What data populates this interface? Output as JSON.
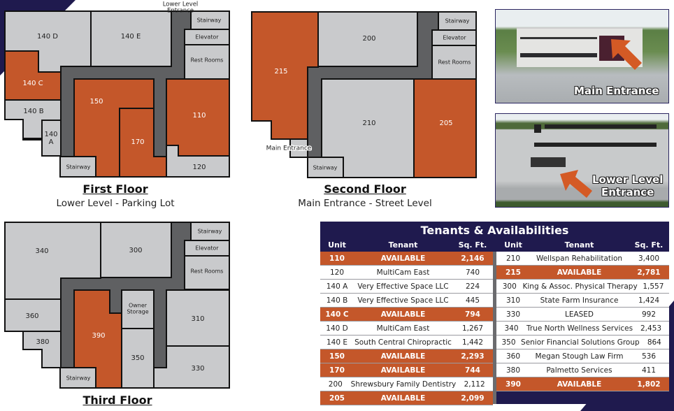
{
  "colors": {
    "navy": "#1f1a4e",
    "available": "#c4572a",
    "leased": "#c9cacc",
    "corridor": "#5f6062"
  },
  "first_floor": {
    "title": "First Floor",
    "subtitle": "Lower Level - Parking Lot",
    "entrance_label_1": "Lower Level",
    "entrance_label_2": "Entrance",
    "rooms": {
      "r140d": "140 D",
      "r140e": "140 E",
      "r140c": "140 C",
      "r140b": "140 B",
      "r140a_1": "140",
      "r140a_2": "A",
      "r150": "150",
      "r170": "170",
      "r110": "110",
      "r120": "120",
      "stair_top": "Stairway",
      "elevator": "Elevator",
      "restrooms": "Rest Rooms",
      "stair_bottom": "Stairway"
    }
  },
  "second_floor": {
    "title": "Second Floor",
    "subtitle": "Main Entrance - Street Level",
    "entrance_label": "Main Entrance",
    "rooms": {
      "r215": "215",
      "r200": "200",
      "r210": "210",
      "r205": "205",
      "stair_top": "Stairway",
      "elevator": "Elevator",
      "restrooms": "Rest Rooms",
      "stair_bottom": "Stairway"
    }
  },
  "third_floor": {
    "title": "Third Floor",
    "rooms": {
      "r340": "340",
      "r300": "300",
      "r360": "360",
      "r380": "380",
      "r390": "390",
      "owner_1": "Owner",
      "owner_2": "Storage",
      "r350": "350",
      "r310": "310",
      "r330": "330",
      "stair_top": "Stairway",
      "elevator": "Elevator",
      "restrooms": "Rest Rooms",
      "stair_bottom": "Stairway"
    }
  },
  "photos": [
    {
      "label": "Main Entrance",
      "icon": "arrow-icon"
    },
    {
      "label_1": "Lower Level",
      "label_2": "Entrance",
      "icon": "arrow-icon"
    }
  ],
  "table": {
    "title": "Tenants & Availabilities",
    "headers": [
      "Unit",
      "Tenant",
      "Sq. Ft."
    ],
    "left": [
      {
        "unit": "110",
        "tenant": "AVAILABLE",
        "sqft": "2,146",
        "available": true
      },
      {
        "unit": "120",
        "tenant": "MultiCam East",
        "sqft": "740",
        "available": false
      },
      {
        "unit": "140 A",
        "tenant": "Very Effective Space LLC",
        "sqft": "224",
        "available": false
      },
      {
        "unit": "140 B",
        "tenant": "Very Effective Space LLC",
        "sqft": "445",
        "available": false
      },
      {
        "unit": "140 C",
        "tenant": "AVAILABLE",
        "sqft": "794",
        "available": true
      },
      {
        "unit": "140 D",
        "tenant": "MultiCam East",
        "sqft": "1,267",
        "available": false
      },
      {
        "unit": "140 E",
        "tenant": "South Central Chiropractic",
        "sqft": "1,442",
        "available": false
      },
      {
        "unit": "150",
        "tenant": "AVAILABLE",
        "sqft": "2,293",
        "available": true
      },
      {
        "unit": "170",
        "tenant": "AVAILABLE",
        "sqft": "744",
        "available": true
      },
      {
        "unit": "200",
        "tenant": "Shrewsbury Family Dentistry",
        "sqft": "2,112",
        "available": false
      },
      {
        "unit": "205",
        "tenant": "AVAILABLE",
        "sqft": "2,099",
        "available": true
      }
    ],
    "right": [
      {
        "unit": "210",
        "tenant": "Wellspan Rehabilitation",
        "sqft": "3,400",
        "available": false
      },
      {
        "unit": "215",
        "tenant": "AVAILABLE",
        "sqft": "2,781",
        "available": true
      },
      {
        "unit": "300",
        "tenant": "King & Assoc. Physical Therapy",
        "sqft": "1,557",
        "available": false
      },
      {
        "unit": "310",
        "tenant": "State Farm Insurance",
        "sqft": "1,424",
        "available": false
      },
      {
        "unit": "330",
        "tenant": "LEASED",
        "sqft": "992",
        "available": false
      },
      {
        "unit": "340",
        "tenant": "True North Wellness Services",
        "sqft": "2,453",
        "available": false
      },
      {
        "unit": "350",
        "tenant": "Senior Financial Solutions Group",
        "sqft": "864",
        "available": false
      },
      {
        "unit": "360",
        "tenant": "Megan Stough Law Firm",
        "sqft": "536",
        "available": false
      },
      {
        "unit": "380",
        "tenant": "Palmetto Services",
        "sqft": "411",
        "available": false
      },
      {
        "unit": "390",
        "tenant": "AVAILABLE",
        "sqft": "1,802",
        "available": true
      }
    ]
  }
}
